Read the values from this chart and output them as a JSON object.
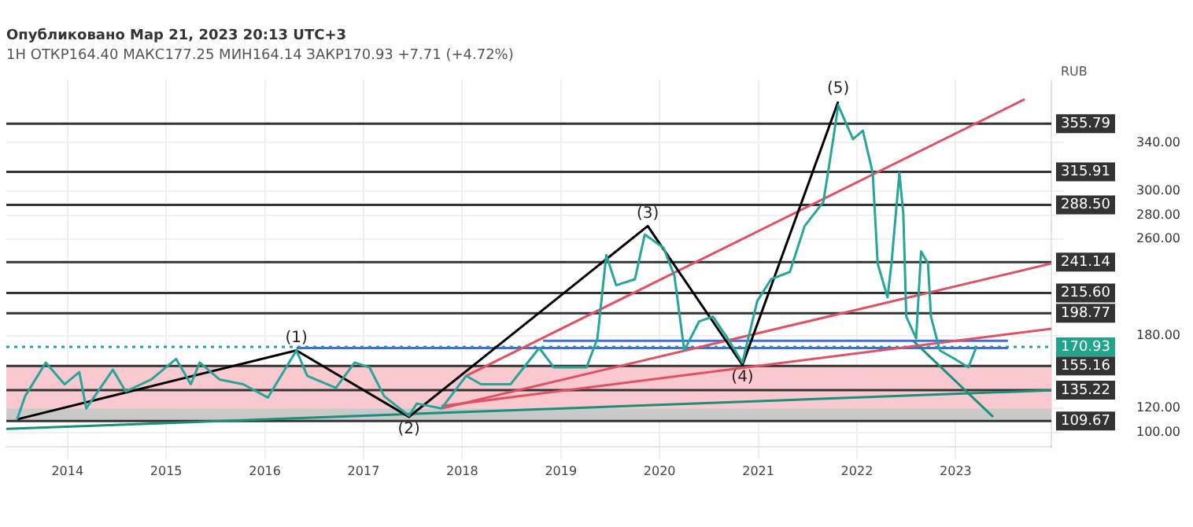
{
  "chart_data": {
    "type": "line",
    "title": "Опубликовано Мар 21, 2023 20:13 UTC+3",
    "subtitle": "1Н ОТКР164.40 МАКС177.25 МИН164.14 ЗАКР170.93 +7.71 (+4.72%)",
    "ylabel": "RUB",
    "xlim": [
      2013.38,
      2023.97
    ],
    "xticks": [
      2014,
      2015,
      2016,
      2017,
      2018,
      2019,
      2020,
      2021,
      2022,
      2023
    ],
    "ylim": [
      88,
      392
    ],
    "yticks": [
      {
        "value": 100,
        "label": "100.00"
      },
      {
        "value": 120,
        "label": "120.00"
      },
      {
        "value": 180,
        "label": "180.00"
      },
      {
        "value": 260,
        "label": "260.00"
      },
      {
        "value": 280,
        "label": "280.00"
      },
      {
        "value": 300,
        "label": "300.00"
      },
      {
        "value": 340,
        "label": "340.00"
      }
    ],
    "grid": true,
    "marker": "none",
    "series": [
      {
        "color": "#26a69a",
        "x": [
          2013.49,
          2013.57,
          2013.78,
          2013.97,
          2014.12,
          2014.19,
          2014.46,
          2014.59,
          2014.85,
          2015.1,
          2015.25,
          2015.34,
          2015.54,
          2015.78,
          2016.03,
          2016.32,
          2016.43,
          2016.72,
          2016.91,
          2017.06,
          2017.21,
          2017.46,
          2017.54,
          2017.79,
          2018.04,
          2018.19,
          2018.49,
          2018.78,
          2018.93,
          2019.26,
          2019.37,
          2019.46,
          2019.56,
          2019.75,
          2019.85,
          2020.04,
          2020.15,
          2020.25,
          2020.4,
          2020.54,
          2020.69,
          2020.84,
          2020.99,
          2021.13,
          2021.32,
          2021.47,
          2021.66,
          2021.76,
          2021.81,
          2021.96,
          2022.06,
          2022.16,
          2022.21,
          2022.31,
          2022.35,
          2022.43,
          2022.47,
          2022.5,
          2022.6,
          2022.65,
          2022.72,
          2022.75,
          2022.84,
          2022.99,
          2023.13,
          2023.21
        ],
        "values": [
          111,
          130,
          158,
          140,
          150,
          120,
          152,
          134,
          144,
          161,
          140,
          158,
          144,
          140,
          129,
          168,
          147,
          137,
          158,
          154,
          130,
          114,
          124,
          120,
          147,
          140,
          140,
          170,
          154,
          154,
          178,
          247,
          222,
          227,
          264,
          253,
          230,
          168,
          192,
          196,
          178,
          158,
          209,
          227,
          233,
          271,
          291,
          343,
          371,
          343,
          350,
          315,
          240,
          212,
          240,
          315,
          281,
          196,
          178,
          250,
          240,
          196,
          168,
          161,
          154,
          171
        ]
      },
      {
        "type": "line",
        "color": "#000000",
        "x": [
          2013.49,
          2016.32,
          2017.46,
          2019.88,
          2020.84,
          2021.81
        ],
        "values": [
          111,
          168,
          113,
          271,
          156,
          374
        ]
      },
      {
        "type": "line",
        "color": "#e05263",
        "x": [
          2018.04,
          2023.7
        ],
        "values": [
          147,
          376
        ]
      },
      {
        "type": "line",
        "color": "#e05263",
        "x": [
          2017.79,
          2023.97
        ],
        "values": [
          120,
          240
        ]
      },
      {
        "type": "line",
        "color": "#e05263",
        "x": [
          2017.79,
          2023.97
        ],
        "values": [
          122,
          186
        ]
      },
      {
        "type": "line",
        "color": "#1a8f7a",
        "x": [
          2013.38,
          2023.97
        ],
        "values": [
          103,
          135
        ]
      },
      {
        "type": "line",
        "color": "#1a8f7a",
        "x": [
          2022.57,
          2023.38
        ],
        "values": [
          176,
          113
        ]
      },
      {
        "type": "line",
        "color": "#3f6fd8",
        "x": [
          2016.32,
          2023.53
        ],
        "values": [
          170,
          170
        ]
      },
      {
        "type": "line",
        "color": "#3f6fd8",
        "x": [
          2018.82,
          2023.53
        ],
        "values": [
          176,
          176
        ]
      }
    ],
    "ref_lines": [
      {
        "axis": "y",
        "value": 355.79,
        "label": "355.79",
        "color": "#333333"
      },
      {
        "axis": "y",
        "value": 315.91,
        "label": "315.91",
        "color": "#333333"
      },
      {
        "axis": "y",
        "value": 288.5,
        "label": "288.50",
        "color": "#333333"
      },
      {
        "axis": "y",
        "value": 241.14,
        "label": "241.14",
        "color": "#333333"
      },
      {
        "axis": "y",
        "value": 215.6,
        "label": "215.60",
        "color": "#333333"
      },
      {
        "axis": "y",
        "value": 198.77,
        "label": "198.77",
        "color": "#333333"
      },
      {
        "axis": "y",
        "value": 170.93,
        "label": "170.93",
        "color": "#22a38b",
        "line_style": "dotted"
      },
      {
        "axis": "y",
        "value": 155.16,
        "label": "155.16",
        "color": "#333333"
      },
      {
        "axis": "y",
        "value": 135.22,
        "label": "135.22",
        "color": "#333333"
      },
      {
        "axis": "y",
        "value": 109.67,
        "label": "109.67",
        "color": "#333333"
      }
    ],
    "bands": [
      {
        "axis": "y",
        "from": 120,
        "to": 155.16,
        "color": "#f9c9cf"
      },
      {
        "axis": "y",
        "from": 109.67,
        "to": 120,
        "color": "#c9c9c9"
      }
    ],
    "annotations": [
      {
        "text": "(1)",
        "x": 2016.32,
        "y": 168
      },
      {
        "text": "(2)",
        "x": 2017.46,
        "y": 113
      },
      {
        "text": "(3)",
        "x": 2019.88,
        "y": 271
      },
      {
        "text": "(4)",
        "x": 2020.84,
        "y": 156
      },
      {
        "text": "(5)",
        "x": 2021.81,
        "y": 374
      }
    ]
  }
}
